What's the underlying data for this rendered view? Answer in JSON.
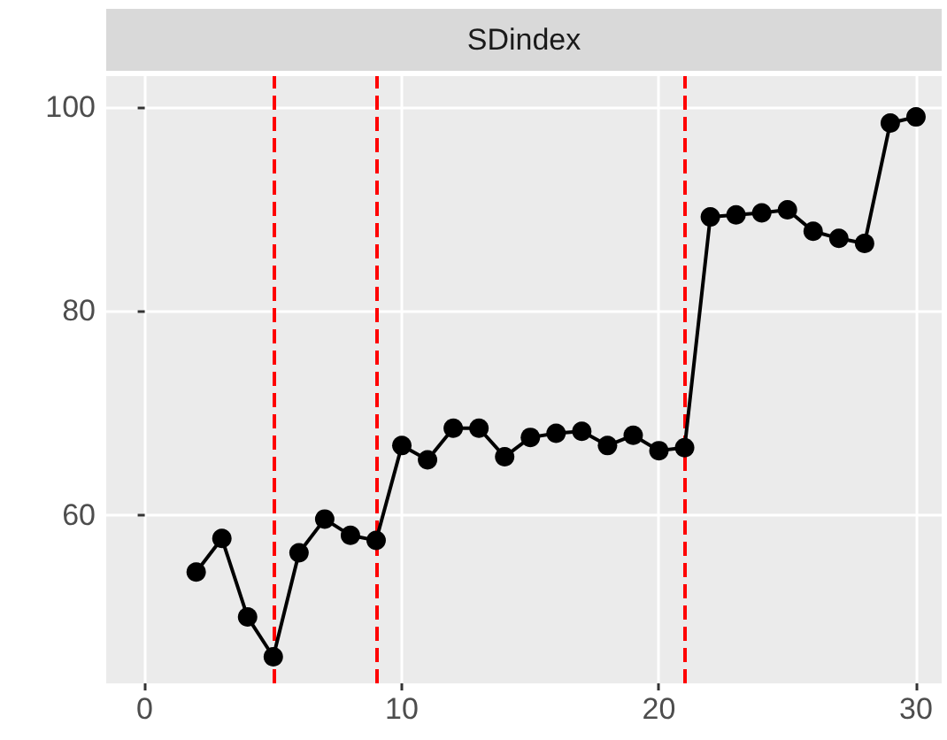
{
  "chart_data": {
    "type": "line",
    "title": "SDindex",
    "x": [
      2,
      3,
      4,
      5,
      6,
      7,
      8,
      9,
      10,
      11,
      12,
      13,
      14,
      15,
      16,
      17,
      18,
      19,
      20,
      21,
      22,
      23,
      24,
      25,
      26,
      27,
      28,
      29,
      30
    ],
    "series": [
      {
        "color": "#000000",
        "values": [
          54.4,
          57.7,
          50.0,
          46.1,
          56.3,
          59.6,
          58.0,
          57.5,
          66.8,
          65.4,
          68.5,
          68.5,
          65.7,
          67.6,
          68.0,
          68.2,
          66.8,
          67.8,
          66.3,
          66.6,
          89.2,
          89.4,
          89.6,
          89.9,
          87.8,
          87.1,
          86.6,
          98.4,
          99.0
        ]
      }
    ],
    "xlim": [
      -1.5,
      31
    ],
    "xticks": [
      0,
      10,
      20,
      30
    ],
    "ylim": [
      43.5,
      103
    ],
    "yticks": [
      60,
      80,
      100
    ],
    "ref_lines": [
      {
        "axis": "x",
        "value": 5,
        "color": "#ff0000",
        "line_style": "dashed"
      },
      {
        "axis": "x",
        "value": 9,
        "color": "#ff0000",
        "line_style": "dashed"
      },
      {
        "axis": "x",
        "value": 21,
        "color": "#ff0000",
        "line_style": "dashed"
      }
    ],
    "grid": true,
    "marker": "circle",
    "line_style": "solid"
  }
}
